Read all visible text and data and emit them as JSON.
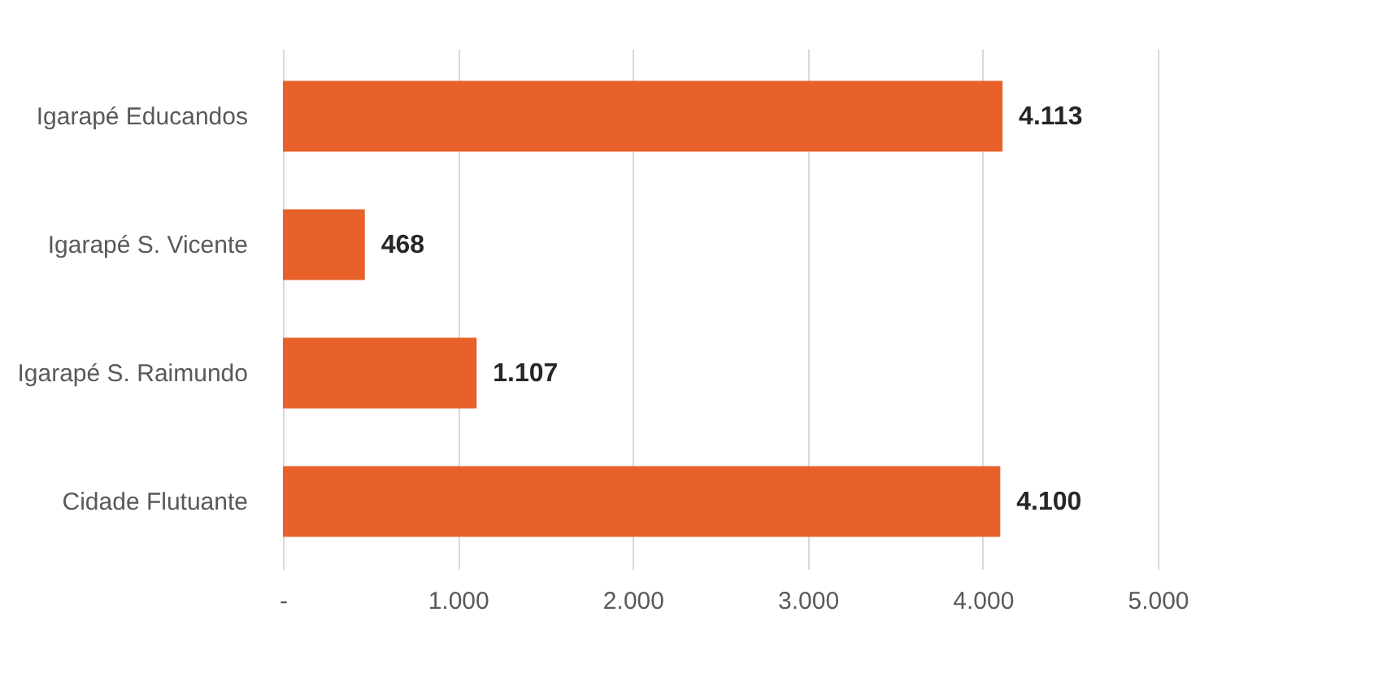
{
  "chart_data": {
    "type": "bar",
    "orientation": "horizontal",
    "categories": [
      "Igarapé Educandos",
      "Igarapé S. Vicente",
      "Igarapé S. Raimundo",
      "Cidade Flutuante"
    ],
    "values": [
      4113,
      468,
      1107,
      4100
    ],
    "value_labels": [
      "4.113",
      "468",
      "1.107",
      "4.100"
    ],
    "color": "#e8612a",
    "xlim": [
      0,
      5000
    ],
    "xticks": [
      {
        "value": 0,
        "label": "-"
      },
      {
        "value": 1000,
        "label": "1.000"
      },
      {
        "value": 2000,
        "label": "2.000"
      },
      {
        "value": 3000,
        "label": "3.000"
      },
      {
        "value": 4000,
        "label": "4.000"
      },
      {
        "value": 5000,
        "label": "5.000"
      }
    ],
    "grid": "x"
  }
}
